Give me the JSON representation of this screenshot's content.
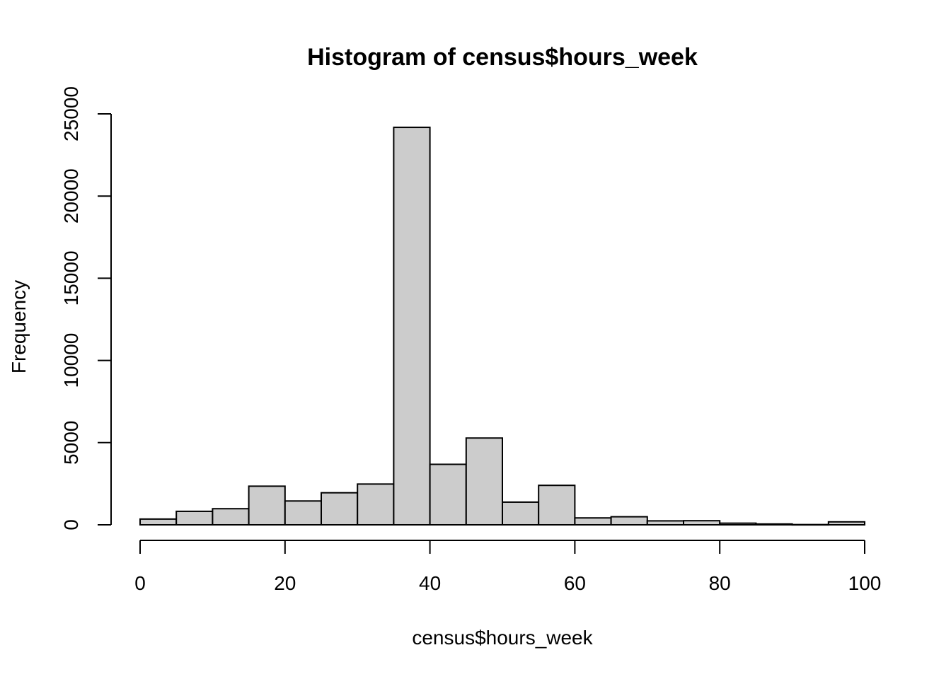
{
  "chart_data": {
    "type": "bar",
    "title": "Histogram of census$hours_week",
    "xlabel": "census$hours_week",
    "ylabel": "Frequency",
    "xlim": [
      0,
      100
    ],
    "ylim": [
      0,
      25000
    ],
    "x_ticks": [
      "0",
      "20",
      "40",
      "60",
      "80",
      "100"
    ],
    "y_ticks": [
      "0",
      "5000",
      "10000",
      "15000",
      "20000",
      "25000"
    ],
    "bin_edges": [
      0,
      5,
      10,
      15,
      20,
      25,
      30,
      35,
      40,
      45,
      50,
      55,
      60,
      65,
      70,
      75,
      80,
      85,
      90,
      95,
      100
    ],
    "values": [
      350,
      820,
      980,
      2350,
      1450,
      1950,
      2480,
      24180,
      3680,
      5280,
      1380,
      2400,
      420,
      490,
      240,
      250,
      100,
      50,
      15,
      180
    ],
    "grid": false
  }
}
